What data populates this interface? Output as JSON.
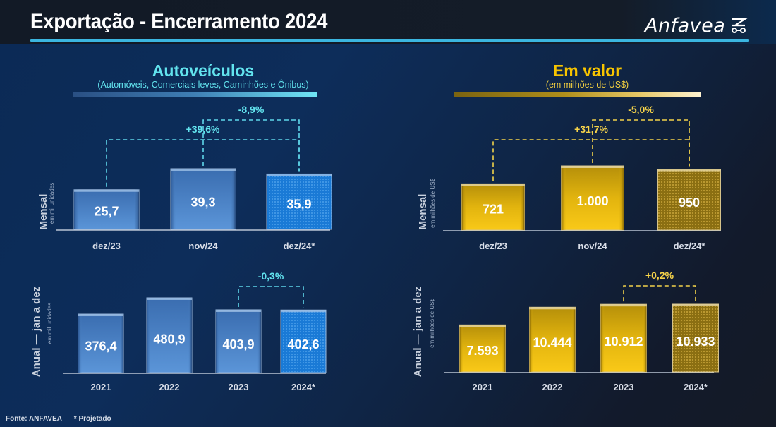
{
  "header": {
    "title": "Exportação - Encerramento 2024",
    "logo_text": "Anfavea",
    "logo_icon": "anfavea-vehicle-mark-icon"
  },
  "panels": {
    "left": {
      "title": "Autoveículos",
      "subtitle": "(Automóveis, Comerciais leves, Caminhões e Ônibus)",
      "title_color": "#62e3ee",
      "subtitle_color": "#62e3ee",
      "accent_color": "#5fd6ea"
    },
    "right": {
      "title": "Em valor",
      "subtitle": "(em milhões de US$)",
      "title_color": "#f7c400",
      "subtitle_color": "#f2cf40",
      "accent_color": "#f2dd7a"
    }
  },
  "footer": {
    "source": "Fonte: ANFAVEA",
    "note": "* Projetado"
  },
  "chart_data": [
    {
      "id": "units-monthly",
      "type": "bar",
      "panel": "left",
      "ylabel": "Mensal",
      "ylabel_sub": "em mil unidades",
      "categories": [
        "dez/23",
        "nov/24",
        "dez/24*"
      ],
      "values": [
        25.7,
        39.3,
        35.9
      ],
      "value_labels": [
        "25,7",
        "39,3",
        "35,9"
      ],
      "projected": [
        false,
        false,
        true
      ],
      "color_theme": "blue",
      "comparisons": [
        {
          "from": 0,
          "to": 2,
          "label": "+39,6%"
        },
        {
          "from": 1,
          "to": 2,
          "label": "-8,9%"
        }
      ]
    },
    {
      "id": "units-annual",
      "type": "bar",
      "panel": "left",
      "ylabel": "Anual — jan a dez",
      "ylabel_sub": "em mil unidades",
      "categories": [
        "2021",
        "2022",
        "2023",
        "2024*"
      ],
      "values": [
        376.4,
        480.9,
        403.9,
        402.6
      ],
      "value_labels": [
        "376,4",
        "480,9",
        "403,9",
        "402,6"
      ],
      "projected": [
        false,
        false,
        false,
        true
      ],
      "color_theme": "blue",
      "comparisons": [
        {
          "from": 2,
          "to": 3,
          "label": "-0,3%"
        }
      ]
    },
    {
      "id": "value-monthly",
      "type": "bar",
      "panel": "right",
      "ylabel": "Mensal",
      "ylabel_sub": "em milhões de US$",
      "categories": [
        "dez/23",
        "nov/24",
        "dez/24*"
      ],
      "values": [
        721,
        1000,
        950
      ],
      "value_labels": [
        "721",
        "1.000",
        "950"
      ],
      "projected": [
        false,
        false,
        true
      ],
      "color_theme": "gold",
      "comparisons": [
        {
          "from": 0,
          "to": 2,
          "label": "+31,7%"
        },
        {
          "from": 1,
          "to": 2,
          "label": "-5,0%"
        }
      ]
    },
    {
      "id": "value-annual",
      "type": "bar",
      "panel": "right",
      "ylabel": "Anual — jan a dez",
      "ylabel_sub": "em milhões de US$",
      "categories": [
        "2021",
        "2022",
        "2023",
        "2024*"
      ],
      "values": [
        7593,
        10444,
        10912,
        10933
      ],
      "value_labels": [
        "7.593",
        "10.444",
        "10.912",
        "10.933"
      ],
      "projected": [
        false,
        false,
        false,
        true
      ],
      "color_theme": "gold",
      "comparisons": [
        {
          "from": 2,
          "to": 3,
          "label": "+0,2%"
        }
      ]
    }
  ]
}
